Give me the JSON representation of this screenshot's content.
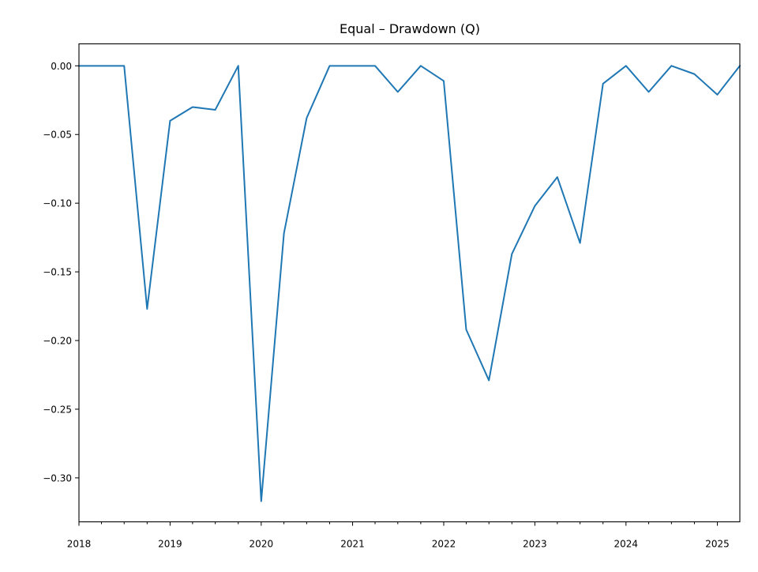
{
  "chart_data": {
    "type": "line",
    "title": "Equal – Drawdown (Q)",
    "xlabel": "",
    "ylabel": "",
    "x_tick_labels": [
      "2018",
      "2019",
      "2020",
      "2021",
      "2022",
      "2023",
      "2024",
      "2025"
    ],
    "y_tick_labels": [
      "0.00",
      "−0.05",
      "−0.10",
      "−0.15",
      "−0.20",
      "−0.25",
      "−0.30"
    ],
    "y_ticks": [
      0,
      -0.05,
      -0.1,
      -0.15,
      -0.2,
      -0.25,
      -0.3
    ],
    "xlim": [
      "2018-01-01",
      "2025-04-01"
    ],
    "ylim": [
      -0.332,
      0.016
    ],
    "grid": false,
    "legend": "none",
    "series": [
      {
        "color": "#1f77b4",
        "x": [
          "2018-01-01",
          "2018-04-01",
          "2018-07-01",
          "2018-10-01",
          "2019-01-01",
          "2019-04-01",
          "2019-07-01",
          "2019-10-01",
          "2020-01-01",
          "2020-04-01",
          "2020-07-01",
          "2020-10-01",
          "2021-01-01",
          "2021-04-01",
          "2021-07-01",
          "2021-10-01",
          "2022-01-01",
          "2022-04-01",
          "2022-07-01",
          "2022-10-01",
          "2023-01-01",
          "2023-04-01",
          "2023-07-01",
          "2023-10-01",
          "2024-01-01",
          "2024-04-01",
          "2024-07-01",
          "2024-10-01",
          "2025-01-01",
          "2025-04-01"
        ],
        "values": [
          0.0,
          0.0,
          0.0,
          -0.177,
          -0.04,
          -0.03,
          -0.032,
          0.0,
          -0.317,
          -0.122,
          -0.038,
          0.0,
          0.0,
          0.0,
          -0.019,
          0.0,
          -0.011,
          -0.192,
          -0.229,
          -0.137,
          -0.102,
          -0.081,
          -0.129,
          -0.013,
          0.0,
          -0.019,
          0.0,
          -0.006,
          -0.021,
          0.0
        ]
      }
    ]
  }
}
